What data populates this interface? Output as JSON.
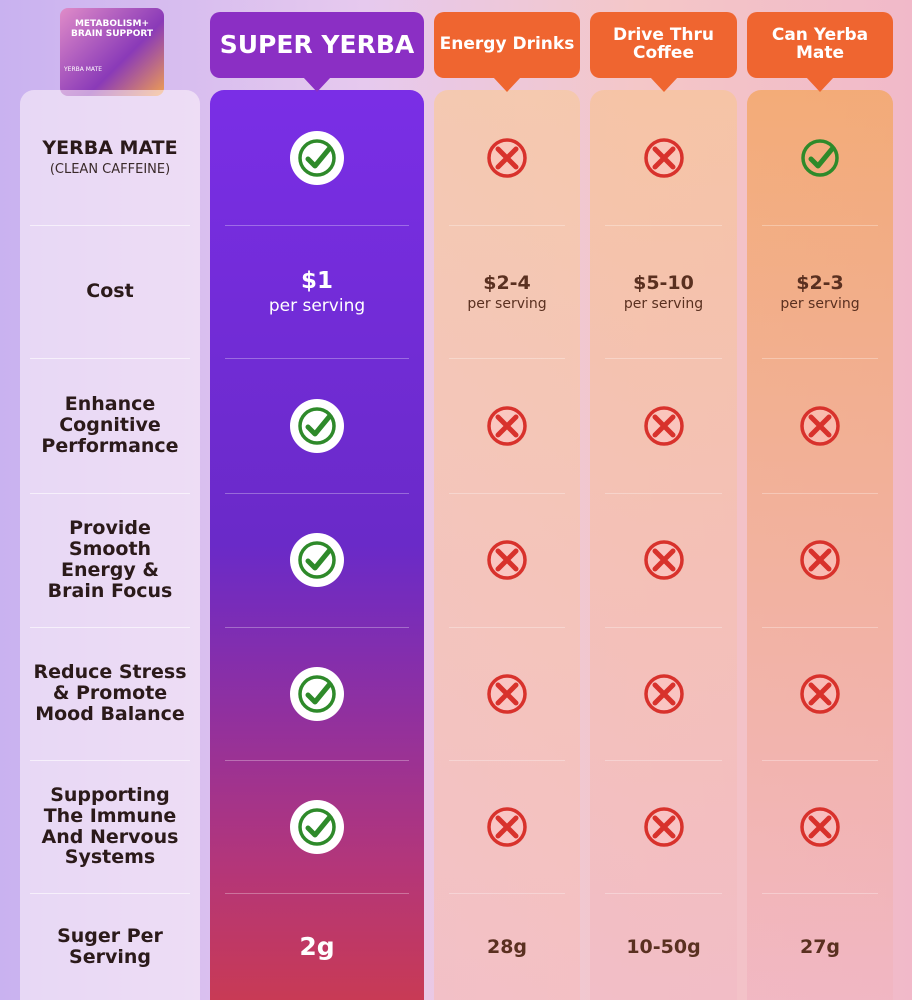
{
  "product": {
    "lines": [
      "METABOLISM+",
      "BRAIN SUPPORT"
    ],
    "flavor": "YERBA MATE"
  },
  "columns": [
    "SUPER YERBA",
    "Energy Drinks",
    "Drive Thru Coffee",
    "Can Yerba Mate"
  ],
  "rows": [
    {
      "label": "YERBA MATE",
      "sublabel": "(CLEAN CAFFEINE)",
      "cells": [
        true,
        false,
        false,
        true
      ]
    },
    {
      "label": "Cost",
      "cells": [
        {
          "price": "$1",
          "unit": "per serving"
        },
        {
          "price": "$2-4",
          "unit": "per serving"
        },
        {
          "price": "$5-10",
          "unit": "per serving"
        },
        {
          "price": "$2-3",
          "unit": "per serving"
        }
      ]
    },
    {
      "label": "Enhance Cognitive Performance",
      "cells": [
        true,
        false,
        false,
        false
      ]
    },
    {
      "label": "Provide Smooth Energy & Brain Focus",
      "cells": [
        true,
        false,
        false,
        false
      ]
    },
    {
      "label": "Reduce Stress & Promote Mood Balance",
      "cells": [
        true,
        false,
        false,
        false
      ]
    },
    {
      "label": "Supporting The Immune And Nervous Systems",
      "cells": [
        true,
        false,
        false,
        false
      ]
    },
    {
      "label": "Suger Per Serving",
      "cells": [
        "2g",
        "28g",
        "10-50g",
        "27g"
      ]
    }
  ]
}
